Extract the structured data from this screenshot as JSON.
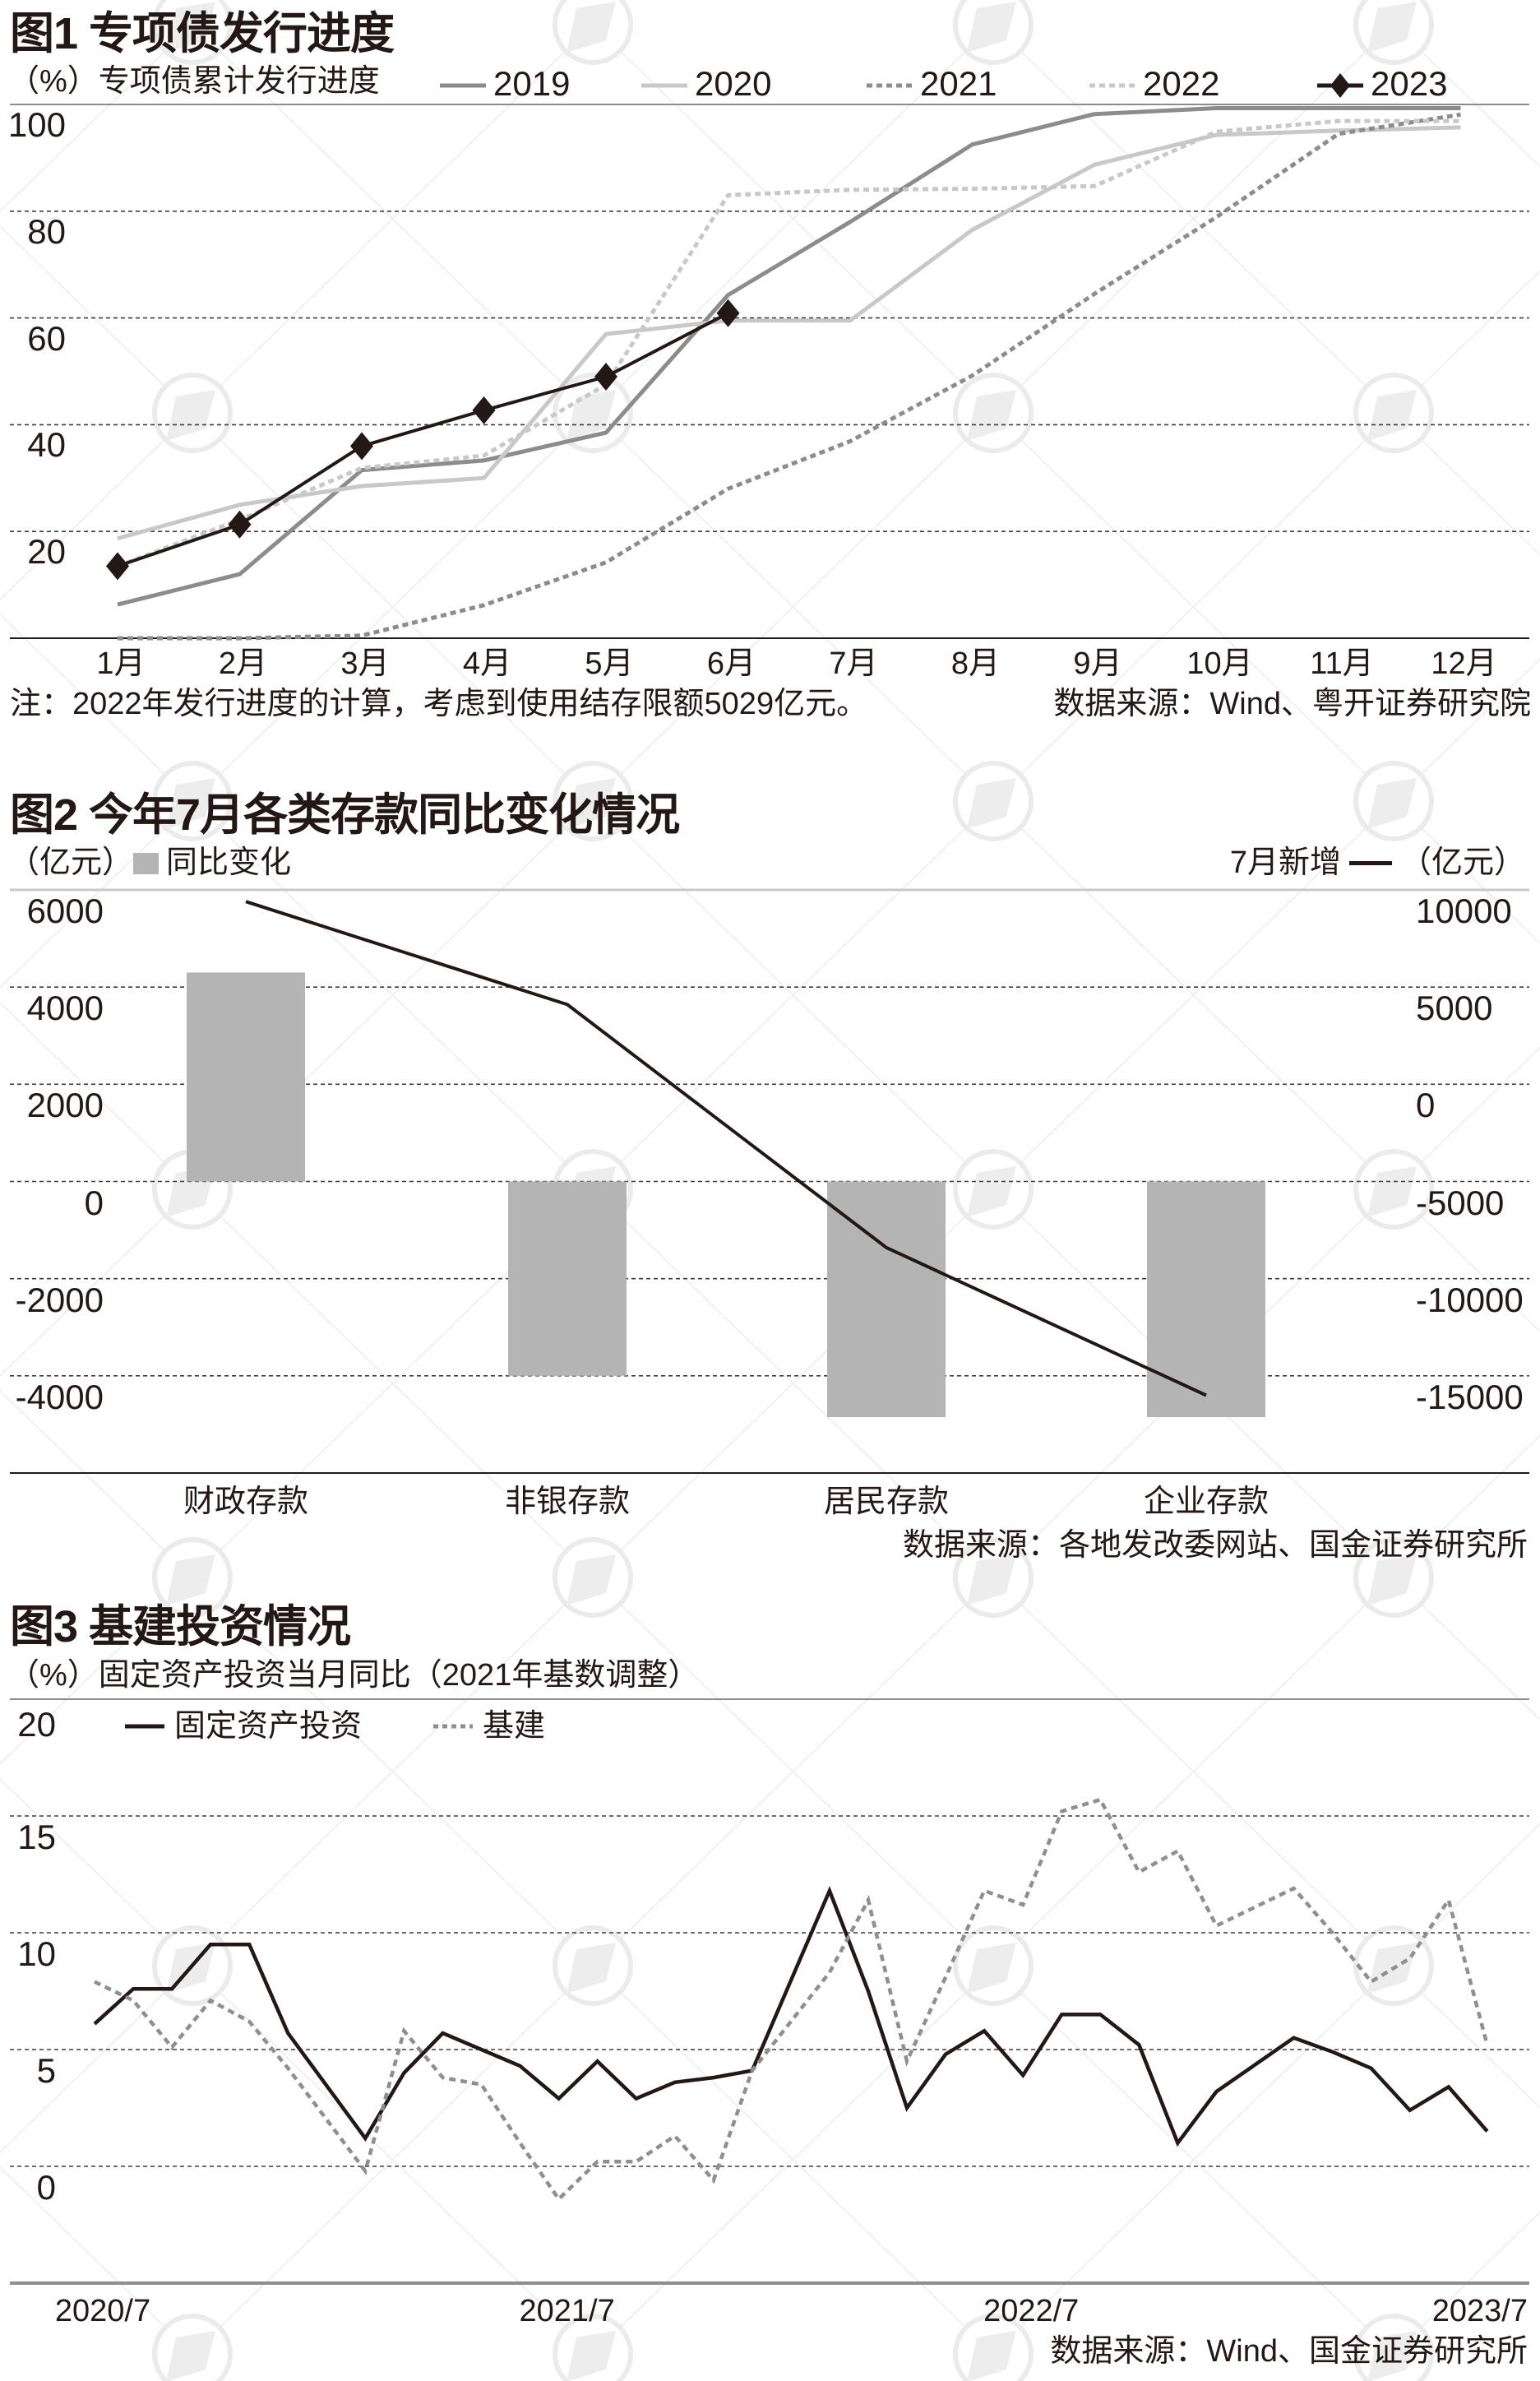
{
  "theme": {
    "text_color": "#231815",
    "grid_color": "#3c3c3c",
    "rule_gray": "#8c8c8c",
    "rule_light": "#c9c9c9"
  },
  "watermark": {
    "icon": "circle-logo-icon"
  },
  "chart_data": [
    {
      "type": "line",
      "title": "图1 专项债发行进度",
      "ylabel": "（%）专项债累计发行进度",
      "xlabel": "",
      "categories": [
        "1月",
        "2月",
        "3月",
        "4月",
        "5月",
        "6月",
        "7月",
        "8月",
        "9月",
        "10月",
        "11月",
        "12月"
      ],
      "ylim": [
        0,
        100
      ],
      "yticks": [
        100,
        80,
        60,
        40,
        20
      ],
      "grid": true,
      "legend_position": "top",
      "series": [
        {
          "name": "2019",
          "line_style": "solid",
          "color": "#8c8c8c",
          "values": [
            6.3,
            12.0,
            31.5,
            33.3,
            38.5,
            64.3,
            78.0,
            92.5,
            98.2,
            99.3,
            99.3,
            99.3
          ]
        },
        {
          "name": "2020",
          "line_style": "solid",
          "color": "#c8c8c8",
          "values": [
            18.7,
            25.0,
            28.5,
            30.0,
            57.0,
            59.5,
            59.5,
            76.5,
            88.7,
            94.3,
            95.1,
            95.7
          ]
        },
        {
          "name": "2021",
          "line_style": "dotted",
          "color": "#8c8c8c",
          "values": [
            0.0,
            0.0,
            0.5,
            6.2,
            14.2,
            28.0,
            36.9,
            49.2,
            64.5,
            78.9,
            94.5,
            98.1
          ]
        },
        {
          "name": "2022",
          "line_style": "dotted",
          "color": "#c8c8c8",
          "values": [
            13.5,
            22.2,
            31.9,
            34.2,
            47.5,
            83.0,
            84.0,
            84.2,
            84.7,
            94.9,
            96.9,
            96.9
          ]
        },
        {
          "name": "2023",
          "line_style": "solid",
          "color": "#231815",
          "marker": "diamond",
          "values": [
            13.5,
            21.3,
            36.0,
            42.7,
            49.0,
            60.9
          ]
        }
      ],
      "note": "注：2022年发行进度的计算，考虑到使用结存限额5029亿元。",
      "source": "数据来源：Wind、粤开证券研究院"
    },
    {
      "type": "bar",
      "title": "图2 今年7月各类存款同比变化情况",
      "ylabel_left": "（亿元）",
      "ylabel_right": "（亿元）",
      "xlabel": "",
      "categories": [
        "财政存款",
        "非银存款",
        "居民存款",
        "企业存款"
      ],
      "ylim_left": [
        -6000,
        6000
      ],
      "yticks_left": [
        6000,
        4000,
        2000,
        0,
        -2000,
        -4000
      ],
      "ylim_right": [
        -20000,
        10000
      ],
      "yticks_right": [
        10000,
        5000,
        0,
        -5000,
        -10000,
        -15000
      ],
      "grid": true,
      "legend_position": "top",
      "series": [
        {
          "name": "同比变化",
          "type": "bar",
          "axis": "left",
          "color": "#b4b4b5",
          "values": [
            4300,
            -4000,
            -4850,
            -4850
          ]
        },
        {
          "name": "7月新增",
          "type": "line",
          "axis": "right",
          "color": "#231815",
          "values": [
            9400,
            4100,
            -8400,
            -16000
          ]
        }
      ],
      "source": "数据来源：各地发改委网站、国金证券研究所"
    },
    {
      "type": "line",
      "title": "图3 基建投资情况",
      "ylabel": "（%）固定资产投资当月同比（2021年基数调整）",
      "xlabel": "",
      "x": [
        "2020/7",
        "2020/8",
        "2020/9",
        "2020/10",
        "2020/11",
        "2020/12",
        "2021/1",
        "2021/2",
        "2021/3",
        "2021/4",
        "2021/5",
        "2021/6",
        "2021/7",
        "2021/8",
        "2021/9",
        "2021/10",
        "2021/11",
        "2021/12",
        "2022/1",
        "2022/2",
        "2022/3",
        "2022/4",
        "2022/5",
        "2022/6",
        "2022/7",
        "2022/8",
        "2022/9",
        "2022/10",
        "2022/11",
        "2022/12",
        "2023/1",
        "2023/2",
        "2023/3",
        "2023/4",
        "2023/5",
        "2023/6",
        "2023/7"
      ],
      "xtick_labels": [
        {
          "label": "2020/7",
          "index": 0
        },
        {
          "label": "2021/7",
          "index": 12
        },
        {
          "label": "2022/7",
          "index": 24
        },
        {
          "label": "2023/7",
          "index": 36
        }
      ],
      "ylim": [
        -5,
        20
      ],
      "yticks": [
        20,
        15,
        10,
        5,
        0
      ],
      "grid": true,
      "legend_position": "top-left inside plot",
      "series": [
        {
          "name": "固定资产投资",
          "line_style": "solid",
          "color": "#231815",
          "values": [
            6.1,
            7.6,
            7.6,
            9.5,
            9.5,
            5.7,
            null,
            1.2,
            4.0,
            5.7,
            5.0,
            4.3,
            2.9,
            4.5,
            2.9,
            3.6,
            3.8,
            4.1,
            null,
            11.8,
            7.5,
            2.5,
            4.8,
            5.8,
            3.9,
            6.5,
            6.5,
            5.2,
            1.0,
            3.2,
            null,
            5.5,
            4.9,
            4.2,
            2.4,
            3.4,
            1.5
          ]
        },
        {
          "name": "基建",
          "line_style": "dotted",
          "color": "#8f8f8f",
          "values": [
            7.9,
            7.1,
            5.1,
            7.1,
            6.2,
            4.2,
            null,
            -0.2,
            5.8,
            3.8,
            3.5,
            1.0,
            -1.4,
            0.2,
            0.2,
            1.3,
            -0.6,
            4.1,
            null,
            8.3,
            11.4,
            4.5,
            8.1,
            11.8,
            11.2,
            15.2,
            15.7,
            12.6,
            13.5,
            10.3,
            null,
            11.9,
            10.0,
            7.9,
            8.9,
            11.4,
            5.2
          ]
        }
      ],
      "source": "数据来源：Wind、国金证券研究所"
    }
  ]
}
